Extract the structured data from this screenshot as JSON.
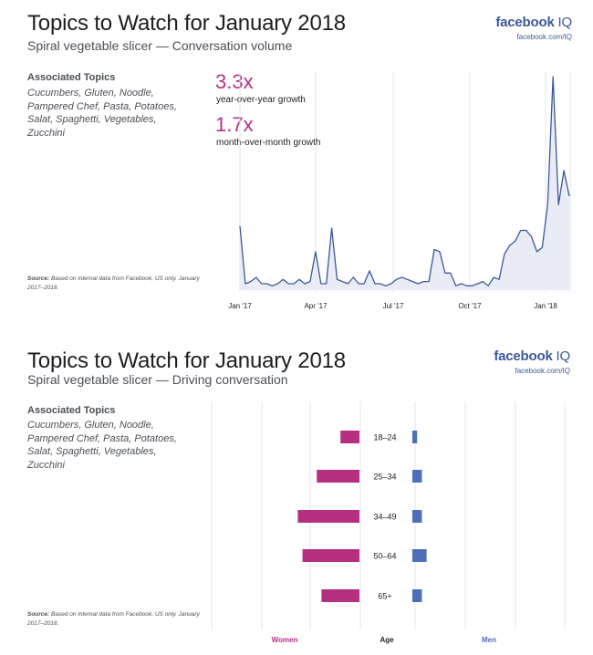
{
  "brand": {
    "name": "facebook",
    "suffix": " IQ",
    "url": "facebook.com/IQ"
  },
  "panel1": {
    "title": "Topics to Watch for January 2018",
    "subtitle": "Spiral vegetable slicer — Conversation volume",
    "assoc_heading": "Associated Topics",
    "assoc_topics": "Cucumbers, Gluten, Noodle, Pampered Chef, Pasta, Potatoes, Salat, Spaghetti, Vegetables, Zucchini",
    "source_bold": "Source:",
    "source_text": " Based on internal data from Facebook, US only. January 2017–2018.",
    "stats": [
      {
        "value": "3.3x",
        "label": "year-over-year growth"
      },
      {
        "value": "1.7x",
        "label": "month-over-month growth"
      }
    ]
  },
  "panel2": {
    "title": "Topics to Watch for January 2018",
    "subtitle": "Spiral vegetable slicer — Driving conversation",
    "assoc_heading": "Associated Topics",
    "assoc_topics": "Cucumbers, Gluten, Noodle, Pampered Chef, Pasta, Potatoes, Salat, Spaghetti, Vegetables, Zucchini",
    "source_bold": "Source:",
    "source_text": " Based on internal data from Facebook, US only. January 2017–2018."
  },
  "colors": {
    "accent": "#b4307f",
    "line": "#3b5998",
    "area": "#e9ecf5",
    "grid": "#e3e6ec",
    "men": "#4e6fb8"
  },
  "chart_data": [
    {
      "type": "area",
      "title": "Spiral vegetable slicer — Conversation volume",
      "x_ticks": [
        "Jan '17",
        "Apr '17",
        "Jul '17",
        "Oct '17",
        "Jan '18"
      ],
      "ylim": [
        0,
        100
      ],
      "series": [
        {
          "values": [
            30,
            3,
            4,
            6,
            3,
            3,
            2,
            3,
            5,
            3,
            3,
            5,
            3,
            4,
            18,
            3,
            3,
            29,
            5,
            4,
            3,
            6,
            3,
            3,
            9,
            3,
            3,
            2,
            3,
            5,
            6,
            5,
            4,
            3,
            4,
            4,
            19,
            18,
            8,
            8,
            2,
            3,
            2,
            2,
            3,
            4,
            2,
            6,
            5,
            17,
            21,
            23,
            28,
            28,
            25,
            18,
            20,
            40,
            100,
            40,
            56,
            44
          ]
        }
      ]
    },
    {
      "type": "bar",
      "title": "Spiral vegetable slicer — Driving conversation",
      "categories": [
        "18–24",
        "25–34",
        "34–49",
        "50–64",
        "65+"
      ],
      "xlabel_left": "Women",
      "xlabel_center": "Age",
      "xlabel_right": "Men",
      "series": [
        {
          "name": "Women",
          "values": [
            4,
            9,
            13,
            12,
            8
          ]
        },
        {
          "name": "Men",
          "values": [
            1,
            2,
            2,
            3,
            2
          ]
        }
      ]
    }
  ]
}
